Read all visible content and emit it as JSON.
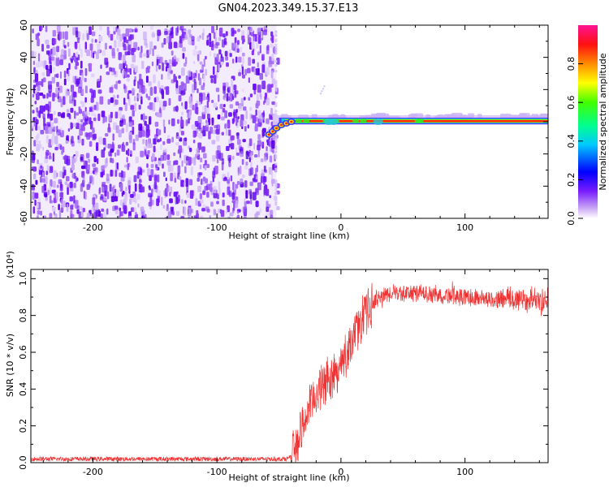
{
  "title": "GN04.2023.349.15.37.E13",
  "chart_data": [
    {
      "type": "heatmap",
      "xlabel": "Height of straight line (km)",
      "ylabel": "Frequency (Hz)",
      "xlim": [
        -250,
        167
      ],
      "ylim": [
        -60,
        60
      ],
      "xticks": [
        -200,
        -100,
        0,
        100
      ],
      "yticks": [
        60,
        40,
        20,
        0,
        -20,
        -40,
        -60
      ],
      "noise_region": {
        "x_range": [
          -250,
          -52
        ],
        "y_range": [
          -60,
          60
        ]
      },
      "signal_band": {
        "x_range": [
          -58,
          167
        ],
        "center_frequency_hz": 0
      },
      "colorbar": {
        "label": "Normalized spectral amplitude",
        "ticks": [
          0.0,
          0.2,
          0.4,
          0.6,
          0.8
        ],
        "range": [
          0,
          1
        ],
        "colors": [
          "#ffffff",
          "#8a2be2",
          "#0000ff",
          "#00ffff",
          "#00ff00",
          "#ffff00",
          "#ff0000",
          "#ff1493"
        ]
      }
    },
    {
      "type": "line",
      "xlabel": "Height of straight line (km)",
      "ylabel": "SNR (10 * v/v)",
      "y_multiplier": "(x10⁴)",
      "xlim": [
        -250,
        167
      ],
      "ylim": [
        0,
        1.05
      ],
      "xticks": [
        -200,
        -100,
        0,
        100
      ],
      "yticks": [
        0.0,
        0.2,
        0.4,
        0.6,
        0.8,
        1.0
      ],
      "series": [
        {
          "color": "#ef3333",
          "x": [
            -250,
            -200,
            -150,
            -100,
            -60,
            -45,
            -40,
            -35,
            -30,
            -25,
            -20,
            -15,
            -10,
            -5,
            0,
            5,
            10,
            15,
            20,
            25,
            30,
            40,
            50,
            60,
            70,
            80,
            90,
            100,
            110,
            120,
            130,
            140,
            150,
            160,
            167
          ],
          "y": [
            0.02,
            0.02,
            0.02,
            0.02,
            0.02,
            0.02,
            0.03,
            0.12,
            0.22,
            0.3,
            0.38,
            0.42,
            0.45,
            0.48,
            0.52,
            0.6,
            0.68,
            0.76,
            0.82,
            0.86,
            0.9,
            0.92,
            0.92,
            0.92,
            0.92,
            0.91,
            0.91,
            0.9,
            0.9,
            0.89,
            0.89,
            0.89,
            0.89,
            0.88,
            0.88
          ]
        }
      ]
    }
  ]
}
